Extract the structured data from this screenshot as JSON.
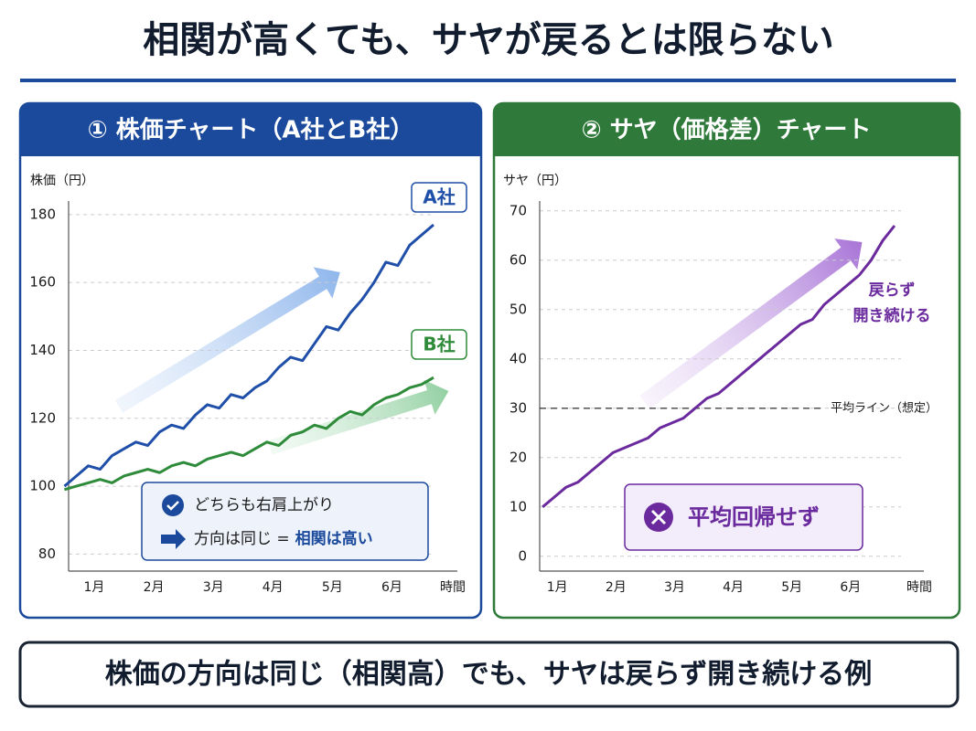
{
  "header": {
    "title": "相関が高くても、サヤが戻るとは限らない"
  },
  "chart_data": [
    {
      "type": "line",
      "title": "① 株価チャート（A社とB社）",
      "y_label": "株価（円）",
      "x_label": "時間",
      "x": [
        0.5,
        0.7,
        0.9,
        1.1,
        1.3,
        1.5,
        1.7,
        1.9,
        2.1,
        2.3,
        2.5,
        2.7,
        2.9,
        3.1,
        3.3,
        3.5,
        3.7,
        3.9,
        4.1,
        4.3,
        4.5,
        4.7,
        4.9,
        5.1,
        5.3,
        5.5,
        5.7,
        5.9,
        6.1,
        6.3,
        6.5,
        6.7
      ],
      "xlim": [
        0.57,
        7.1
      ],
      "xticks": [
        {
          "value": 1,
          "label": "1月"
        },
        {
          "value": 2,
          "label": "2月"
        },
        {
          "value": 3,
          "label": "3月"
        },
        {
          "value": 4,
          "label": "4月"
        },
        {
          "value": 5,
          "label": "5月"
        },
        {
          "value": 6,
          "label": "6月"
        }
      ],
      "ylim": [
        75,
        184
      ],
      "yticks": [
        80,
        100,
        120,
        140,
        160,
        180
      ],
      "grid": true,
      "series": [
        {
          "name": "A社",
          "color": "#1f4fa8",
          "values": [
            100,
            103,
            106,
            105,
            109,
            111,
            113,
            112,
            116,
            118,
            117,
            121,
            124,
            123,
            127,
            126,
            129,
            131,
            135,
            138,
            137,
            142,
            147,
            146,
            151,
            155,
            160,
            166,
            165,
            171,
            174,
            177
          ]
        },
        {
          "name": "B社",
          "color": "#2e8b3a",
          "values": [
            99,
            100,
            101,
            102,
            101,
            103,
            104,
            105,
            104,
            106,
            107,
            106,
            108,
            109,
            110,
            109,
            111,
            113,
            112,
            115,
            116,
            118,
            117,
            120,
            122,
            121,
            124,
            126,
            127,
            129,
            130,
            132
          ]
        }
      ],
      "annotations": [
        "どちらも右肩上がり",
        "方向は同じ =",
        "相関は高い"
      ]
    },
    {
      "type": "line",
      "title": "② サヤ（価格差）チャート",
      "y_label": "サヤ（円）",
      "x_label": "時間",
      "x": [
        0.75,
        0.95,
        1.15,
        1.35,
        1.55,
        1.75,
        1.95,
        2.15,
        2.35,
        2.55,
        2.75,
        2.95,
        3.15,
        3.35,
        3.55,
        3.75,
        3.95,
        4.15,
        4.35,
        4.55,
        4.75,
        4.95,
        5.15,
        5.35,
        5.55,
        5.75,
        5.95,
        6.15,
        6.35,
        6.55,
        6.75
      ],
      "xlim": [
        0.7,
        7.25
      ],
      "xticks": [
        {
          "value": 1,
          "label": "1月"
        },
        {
          "value": 2,
          "label": "2月"
        },
        {
          "value": 3,
          "label": "3月"
        },
        {
          "value": 4,
          "label": "4月"
        },
        {
          "value": 5,
          "label": "5月"
        },
        {
          "value": 6,
          "label": "6月"
        }
      ],
      "ylim": [
        -3,
        72
      ],
      "yticks": [
        0,
        10,
        20,
        30,
        40,
        50,
        60,
        70
      ],
      "grid": true,
      "color": "#6a2a9e",
      "values": [
        10,
        12,
        14,
        15,
        17,
        19,
        21,
        22,
        23,
        24,
        26,
        27,
        28,
        30,
        32,
        33,
        35,
        37,
        39,
        41,
        43,
        45,
        47,
        48,
        51,
        53,
        55,
        57,
        60,
        64,
        67
      ],
      "reference_line": {
        "value": 30,
        "label": "平均ライン（想定）"
      },
      "annotations": [
        "戻らず",
        "開き続ける",
        "平均回帰せず"
      ]
    }
  ],
  "footer": {
    "text": "株価の方向は同じ（相関高）でも、サヤは戻らず開き続ける例"
  }
}
